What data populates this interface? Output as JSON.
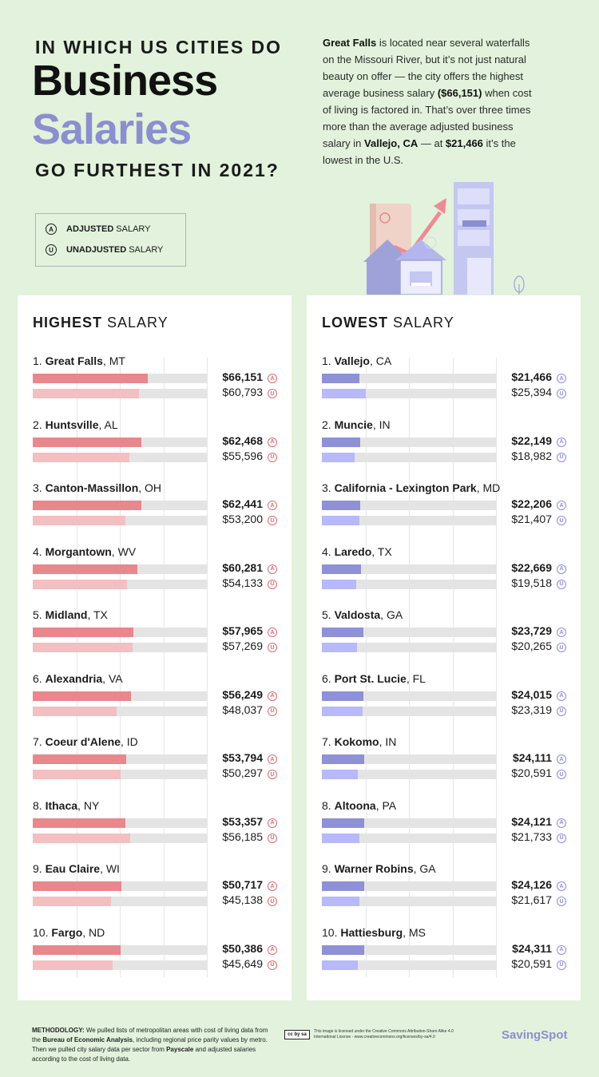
{
  "header": {
    "line1": "IN WHICH US CITIES DO",
    "big1": "Business",
    "big2": "Salaries",
    "line3": "GO FURTHEST IN 2021?"
  },
  "intro": {
    "p1_bold": "Great Falls",
    "p1_a": " is located near several waterfalls on the Missouri River, but it’s not just natural beauty on offer — the city offers the highest average business salary ",
    "p1_bold2": "($66,151)",
    "p1_b": " when cost of living is factored in. That’s over three times more than the average adjusted business salary in ",
    "p1_bold3": "Vallejo, CA",
    "p1_c": " — at ",
    "p1_bold4": "$21,466",
    "p1_d": " it’s the lowest in the U.S."
  },
  "legend": {
    "adjusted_icon": "A",
    "adjusted_bold": "ADJUSTED",
    "adjusted_rest": "SALARY",
    "unadjusted_icon": "U",
    "unadjusted_bold": "UNADJUSTED",
    "unadjusted_rest": "SALARY"
  },
  "colors": {
    "high_adjusted": "#e8878c",
    "high_unadjusted": "#f3bfc1",
    "low_adjusted": "#8e91d6",
    "low_unadjusted": "#b7b9fa",
    "high_badge": "#e06a70",
    "low_badge": "#8a8ee0",
    "accent": "#8b8fcf"
  },
  "chart_data": [
    {
      "type": "bar",
      "title_bold": "HIGHEST",
      "title_rest": "SALARY",
      "xlim": [
        0,
        100000
      ],
      "series_names": [
        "Adjusted Salary",
        "Unadjusted Salary"
      ],
      "rows": [
        {
          "rank": "1.",
          "city": "Great Falls",
          "state": "MT",
          "adjusted": 66151,
          "unadjusted": 60793,
          "adjusted_label": "$66,151",
          "unadjusted_label": "$60,793"
        },
        {
          "rank": "2.",
          "city": "Huntsville",
          "state": "AL",
          "adjusted": 62468,
          "unadjusted": 55596,
          "adjusted_label": "$62,468",
          "unadjusted_label": "$55,596"
        },
        {
          "rank": "3.",
          "city": "Canton-Massillon",
          "state": "OH",
          "adjusted": 62441,
          "unadjusted": 53200,
          "adjusted_label": "$62,441",
          "unadjusted_label": "$53,200"
        },
        {
          "rank": "4.",
          "city": "Morgantown",
          "state": "WV",
          "adjusted": 60281,
          "unadjusted": 54133,
          "adjusted_label": "$60,281",
          "unadjusted_label": "$54,133"
        },
        {
          "rank": "5.",
          "city": "Midland",
          "state": "TX",
          "adjusted": 57965,
          "unadjusted": 57269,
          "adjusted_label": "$57,965",
          "unadjusted_label": "$57,269"
        },
        {
          "rank": "6.",
          "city": "Alexandria",
          "state": "VA",
          "adjusted": 56249,
          "unadjusted": 48037,
          "adjusted_label": "$56,249",
          "unadjusted_label": "$48,037"
        },
        {
          "rank": "7.",
          "city": "Coeur d'Alene",
          "state": "ID",
          "adjusted": 53794,
          "unadjusted": 50297,
          "adjusted_label": "$53,794",
          "unadjusted_label": "$50,297"
        },
        {
          "rank": "8.",
          "city": "Ithaca",
          "state": "NY",
          "adjusted": 53357,
          "unadjusted": 56185,
          "adjusted_label": "$53,357",
          "unadjusted_label": "$56,185"
        },
        {
          "rank": "9.",
          "city": "Eau Claire",
          "state": "WI",
          "adjusted": 50717,
          "unadjusted": 45138,
          "adjusted_label": "$50,717",
          "unadjusted_label": "$45,138"
        },
        {
          "rank": "10.",
          "city": "Fargo",
          "state": "ND",
          "adjusted": 50386,
          "unadjusted": 45649,
          "adjusted_label": "$50,386",
          "unadjusted_label": "$45,649"
        }
      ]
    },
    {
      "type": "bar",
      "title_bold": "LOWEST",
      "title_rest": "SALARY",
      "xlim": [
        0,
        100000
      ],
      "series_names": [
        "Adjusted Salary",
        "Unadjusted Salary"
      ],
      "rows": [
        {
          "rank": "1.",
          "city": "Vallejo",
          "state": "CA",
          "adjusted": 21466,
          "unadjusted": 25394,
          "adjusted_label": "$21,466",
          "unadjusted_label": "$25,394"
        },
        {
          "rank": "2.",
          "city": "Muncie",
          "state": "IN",
          "adjusted": 22149,
          "unadjusted": 18982,
          "adjusted_label": "$22,149",
          "unadjusted_label": "$18,982"
        },
        {
          "rank": "3.",
          "city": "California - Lexington Park",
          "state": "MD",
          "adjusted": 22206,
          "unadjusted": 21407,
          "adjusted_label": "$22,206",
          "unadjusted_label": "$21,407"
        },
        {
          "rank": "4.",
          "city": "Laredo",
          "state": "TX",
          "adjusted": 22669,
          "unadjusted": 19518,
          "adjusted_label": "$22,669",
          "unadjusted_label": "$19,518"
        },
        {
          "rank": "5.",
          "city": "Valdosta",
          "state": "GA",
          "adjusted": 23729,
          "unadjusted": 20265,
          "adjusted_label": "$23,729",
          "unadjusted_label": "$20,265"
        },
        {
          "rank": "6.",
          "city": "Port St. Lucie",
          "state": "FL",
          "adjusted": 24015,
          "unadjusted": 23319,
          "adjusted_label": "$24,015",
          "unadjusted_label": "$23,319"
        },
        {
          "rank": "7.",
          "city": "Kokomo",
          "state": "IN",
          "adjusted": 24111,
          "unadjusted": 20591,
          "adjusted_label": "$24,111",
          "unadjusted_label": "$20,591"
        },
        {
          "rank": "8.",
          "city": "Altoona",
          "state": "PA",
          "adjusted": 24121,
          "unadjusted": 21733,
          "adjusted_label": "$24,121",
          "unadjusted_label": "$21,733"
        },
        {
          "rank": "9.",
          "city": "Warner Robins",
          "state": "GA",
          "adjusted": 24126,
          "unadjusted": 21617,
          "adjusted_label": "$24,126",
          "unadjusted_label": "$21,617"
        },
        {
          "rank": "10.",
          "city": "Hattiesburg",
          "state": "MS",
          "adjusted": 24311,
          "unadjusted": 20591,
          "adjusted_label": "$24,311",
          "unadjusted_label": "$20,591"
        }
      ]
    }
  ],
  "footer": {
    "method_bold": "METHODOLOGY:",
    "method_a": " We pulled lists of metropolitan areas with cost of living data from the ",
    "method_bold2": "Bureau of Economic Analysis",
    "method_b": ", including regional price parity values by metro. Then we pulled city salary data per sector from ",
    "method_bold3": "Payscale",
    "method_c": " and adjusted salaries according to the cost of living data.",
    "cc_logo": "cc by sa",
    "license": "This image is licensed under the Creative Commons Attribution-Share Alike 4.0 International License - www.creativecommons.org/licenses/by-sa/4.0",
    "brand": "SavingSpot"
  }
}
